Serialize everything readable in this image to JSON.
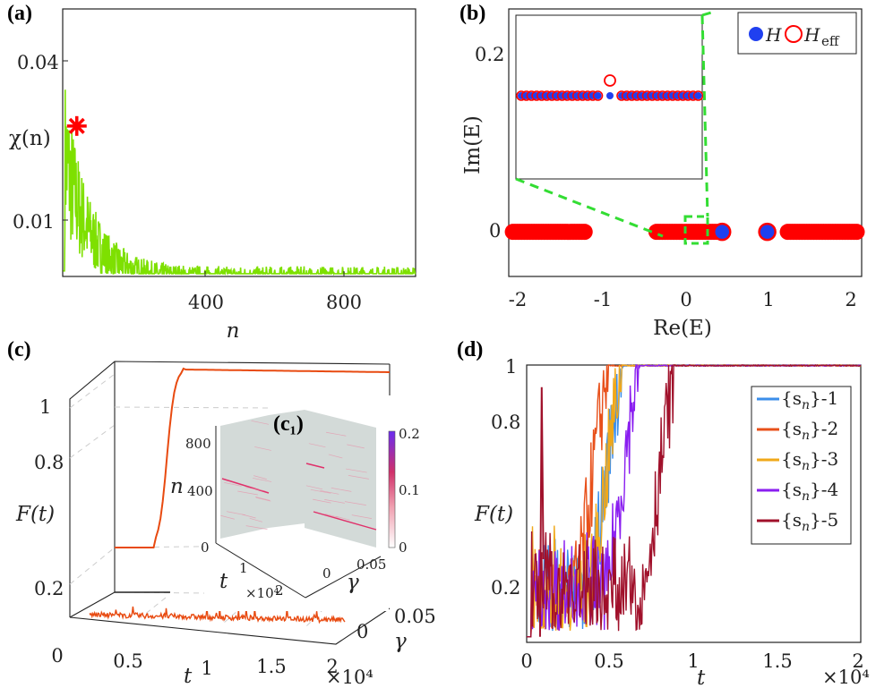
{
  "chart_data": [
    {
      "id": "a",
      "panel_label": "(a)",
      "type": "line",
      "xlabel": "n",
      "ylabel": "χ(n)",
      "xticks": [
        "400",
        "800"
      ],
      "yticks": [
        "0.01",
        "0.04"
      ],
      "xlim": [
        0,
        1000
      ],
      "color": "#7ee000",
      "marker_color": "#ff0000",
      "peak": {
        "x": 40,
        "y": 0.031
      },
      "decay": {
        "amplitude": 0.03,
        "scale_n": 70
      }
    },
    {
      "id": "b",
      "panel_label": "(b)",
      "type": "scatter",
      "xlabel": "Re(E)",
      "ylabel": "Im(E)",
      "xticks": [
        "-2",
        "-1",
        "0",
        "1",
        "2"
      ],
      "yticks": [
        "0",
        "0.2"
      ],
      "xlim": [
        -2.15,
        2.15
      ],
      "ylim": [
        -0.05,
        0.25
      ],
      "legend": [
        {
          "label": "H",
          "color": "#2040f0",
          "style": "filled"
        },
        {
          "label": "H",
          "subscript": "eff",
          "color": "#ff0000",
          "style": "open"
        }
      ],
      "bands": [
        [
          -2.1,
          -1.2
        ],
        [
          -0.35,
          0.45
        ],
        [
          1.25,
          2.1
        ]
      ],
      "isolated_state": {
        "x": 1.0,
        "y": 0.0
      },
      "inset": {
        "highlight_color": "#33dd33",
        "zero_mode_offset": 0.017
      }
    },
    {
      "id": "c",
      "panel_label": "(c)",
      "type": "line",
      "xlabel": "t",
      "ylabel": "F(t)",
      "zlabel": "γ",
      "xticks": [
        "0",
        "0.5",
        "1",
        "1.5",
        "2"
      ],
      "x_multiplier": "×10⁴",
      "yticks": [
        "0.2",
        "0.8",
        "1"
      ],
      "zticks": [
        "0",
        "0.05"
      ],
      "color": "#e84a10",
      "inset": {
        "label": "(c₁)",
        "ylabel": "n",
        "xlabel": "t",
        "zlabel": "γ",
        "yticks": [
          "400",
          "800"
        ],
        "xticks": [
          "0",
          "1",
          "2"
        ],
        "x_multiplier": "×10⁴",
        "zticks": [
          "0",
          "0.05"
        ],
        "colorbar_ticks": [
          "0",
          "0.1",
          "0.2"
        ]
      }
    },
    {
      "id": "d",
      "panel_label": "(d)",
      "type": "line",
      "xlabel": "t",
      "ylabel": "F(t)",
      "xticks": [
        "0",
        "0.5",
        "1",
        "1.5",
        "2"
      ],
      "x_multiplier": "×10⁴",
      "yticks": [
        "0.2",
        "0.8",
        "1"
      ],
      "xlim": [
        0,
        2
      ],
      "ylim": [
        0,
        1
      ],
      "series": [
        {
          "label_prefix": "{s",
          "label_sub": "n",
          "label_suffix": "}-1",
          "color": "#3b8eea",
          "rise": 0.5
        },
        {
          "label_prefix": "{s",
          "label_sub": "n",
          "label_suffix": "}-2",
          "color": "#e8501a",
          "rise": 0.42
        },
        {
          "label_prefix": "{s",
          "label_sub": "n",
          "label_suffix": "}-3",
          "color": "#f0a81a",
          "rise": 0.5
        },
        {
          "label_prefix": "{s",
          "label_sub": "n",
          "label_suffix": "}-4",
          "color": "#8a1ef0",
          "rise": 0.6
        },
        {
          "label_prefix": "{s",
          "label_sub": "n",
          "label_suffix": "}-5",
          "color": "#a0102a",
          "rise": 0.82
        }
      ]
    }
  ]
}
